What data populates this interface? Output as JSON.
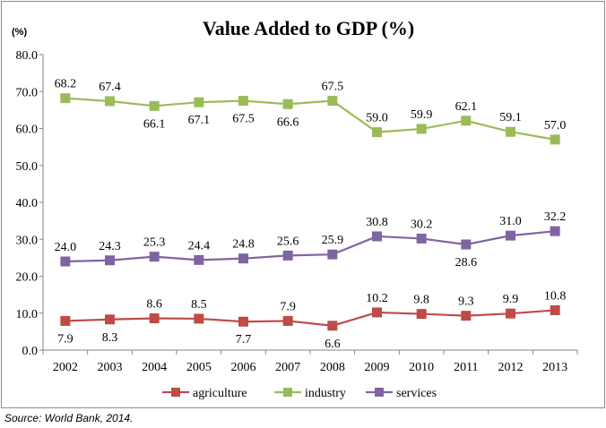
{
  "chart_data": {
    "type": "line",
    "title": "Value Added to GDP (%)",
    "ylabel": "(%)",
    "xlabel": "",
    "categories": [
      "2002",
      "2003",
      "2004",
      "2005",
      "2006",
      "2007",
      "2008",
      "2009",
      "2010",
      "2011",
      "2012",
      "2013"
    ],
    "ylim": [
      0,
      80
    ],
    "yticks": [
      "0.0",
      "10.0",
      "20.0",
      "30.0",
      "40.0",
      "50.0",
      "60.0",
      "70.0",
      "80.0"
    ],
    "grid": false,
    "legend_position": "bottom",
    "series": [
      {
        "name": "agriculture",
        "color": "#be4b48",
        "marker": "square",
        "values": [
          7.9,
          8.3,
          8.6,
          8.5,
          7.7,
          7.9,
          6.6,
          10.2,
          9.8,
          9.3,
          9.9,
          10.8
        ],
        "labels": [
          "7.9",
          "8.3",
          "8.6",
          "8.5",
          "7.7",
          "7.9",
          "6.6",
          "10.2",
          "9.8",
          "9.3",
          "9.9",
          "10.8"
        ],
        "label_side": [
          "below",
          "below",
          "above",
          "above",
          "below",
          "above",
          "below",
          "above",
          "above",
          "above",
          "above",
          "above"
        ]
      },
      {
        "name": "industry",
        "color": "#9bbb59",
        "marker": "square",
        "values": [
          68.2,
          67.4,
          66.1,
          67.1,
          67.5,
          66.6,
          67.5,
          59.0,
          59.9,
          62.1,
          59.1,
          57.0
        ],
        "labels": [
          "68.2",
          "67.4",
          "66.1",
          "67.1",
          "67.5",
          "66.6",
          "67.5",
          "59.0",
          "59.9",
          "62.1",
          "59.1",
          "57.0"
        ],
        "label_side": [
          "above",
          "above",
          "below",
          "below",
          "below",
          "below",
          "above",
          "above",
          "above",
          "above",
          "above",
          "above"
        ]
      },
      {
        "name": "services",
        "color": "#8064a2",
        "marker": "square",
        "values": [
          24.0,
          24.3,
          25.3,
          24.4,
          24.8,
          25.6,
          25.9,
          30.8,
          30.2,
          28.6,
          31.0,
          32.2
        ],
        "labels": [
          "24.0",
          "24.3",
          "25.3",
          "24.4",
          "24.8",
          "25.6",
          "25.9",
          "30.8",
          "30.2",
          "28.6",
          "31.0",
          "32.2"
        ],
        "label_side": [
          "above",
          "above",
          "above",
          "above",
          "above",
          "above",
          "above",
          "above",
          "above",
          "below",
          "above",
          "above"
        ]
      }
    ]
  },
  "source": "Source: World Bank, 2014."
}
